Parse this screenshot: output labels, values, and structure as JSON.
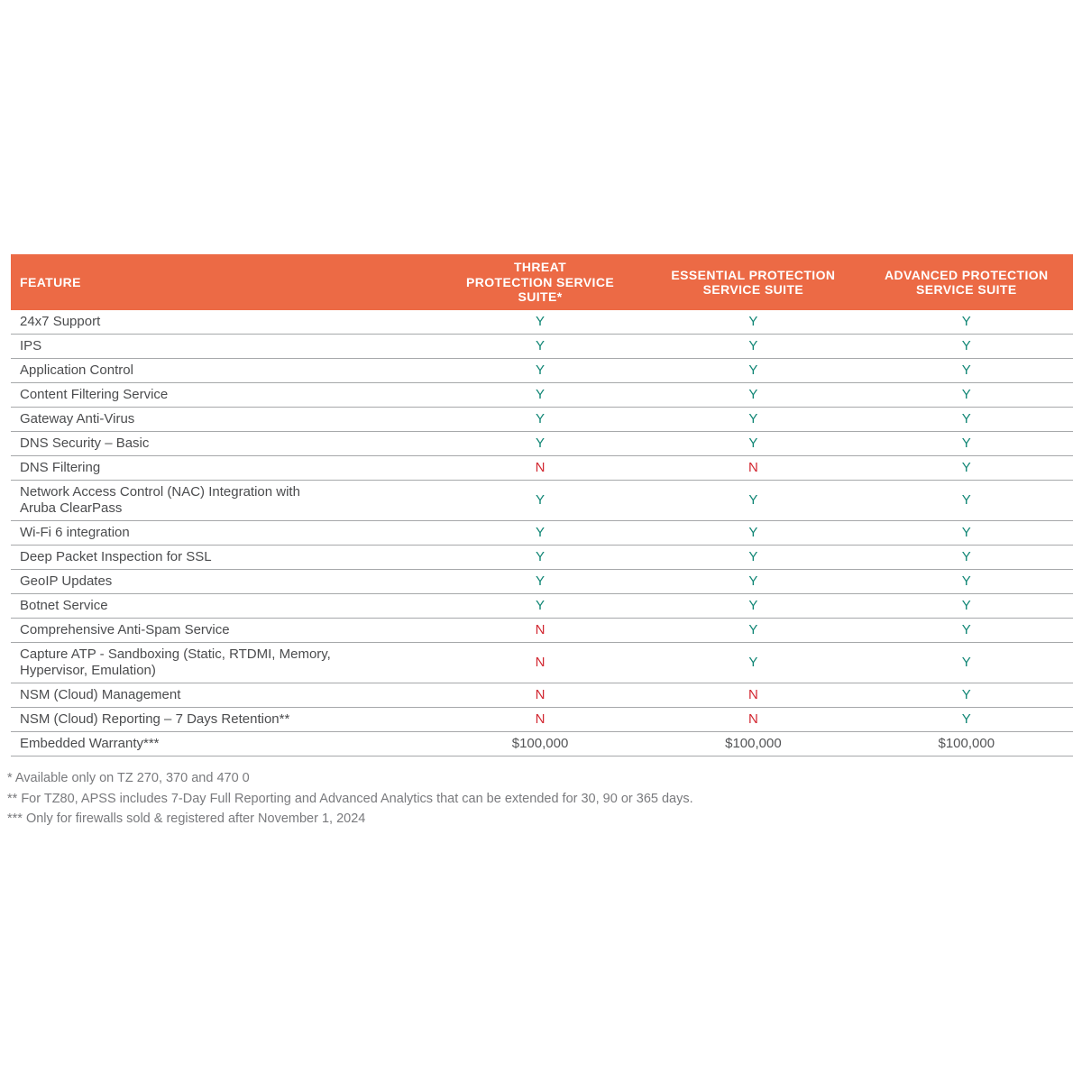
{
  "colors": {
    "header_bg": "#EC6A45",
    "header_text": "#FFFFFF",
    "yes": "#0F8574",
    "no": "#D22630",
    "feature_text": "#4B4C4E",
    "money_text": "#545557",
    "footnote_text": "#797A7D",
    "row_border": "#A6A8AA"
  },
  "table": {
    "columns": [
      {
        "key": "feature",
        "label": "FEATURE"
      },
      {
        "key": "threat",
        "label": "THREAT\nPROTECTION SERVICE\nSUITE*"
      },
      {
        "key": "essential",
        "label": "ESSENTIAL PROTECTION\nSERVICE SUITE"
      },
      {
        "key": "advanced",
        "label": "ADVANCED PROTECTION\nSERVICE SUITE"
      }
    ],
    "rows": [
      {
        "feature": "24x7 Support",
        "threat": "Y",
        "essential": "Y",
        "advanced": "Y"
      },
      {
        "feature": "IPS",
        "threat": "Y",
        "essential": "Y",
        "advanced": "Y"
      },
      {
        "feature": "Application Control",
        "threat": "Y",
        "essential": "Y",
        "advanced": "Y"
      },
      {
        "feature": "Content Filtering Service",
        "threat": "Y",
        "essential": "Y",
        "advanced": "Y"
      },
      {
        "feature": "Gateway Anti-Virus",
        "threat": "Y",
        "essential": "Y",
        "advanced": "Y"
      },
      {
        "feature": "DNS Security – Basic",
        "threat": "Y",
        "essential": "Y",
        "advanced": "Y"
      },
      {
        "feature": "DNS Filtering",
        "threat": "N",
        "essential": "N",
        "advanced": "Y"
      },
      {
        "feature": "Network Access Control (NAC) Integration with\nAruba ClearPass",
        "threat": "Y",
        "essential": "Y",
        "advanced": "Y"
      },
      {
        "feature": "Wi-Fi 6 integration",
        "threat": "Y",
        "essential": "Y",
        "advanced": "Y"
      },
      {
        "feature": "Deep Packet Inspection for SSL",
        "threat": "Y",
        "essential": "Y",
        "advanced": "Y"
      },
      {
        "feature": "GeoIP Updates",
        "threat": "Y",
        "essential": "Y",
        "advanced": "Y"
      },
      {
        "feature": "Botnet Service",
        "threat": "Y",
        "essential": "Y",
        "advanced": "Y"
      },
      {
        "feature": "Comprehensive Anti-Spam Service",
        "threat": "N",
        "essential": "Y",
        "advanced": "Y"
      },
      {
        "feature": "Capture ATP -  Sandboxing (Static, RTDMI, Memory,\nHypervisor, Emulation)",
        "threat": "N",
        "essential": "Y",
        "advanced": "Y"
      },
      {
        "feature": "NSM (Cloud) Management",
        "threat": "N",
        "essential": "N",
        "advanced": "Y"
      },
      {
        "feature": "NSM (Cloud) Reporting – 7 Days Retention**",
        "threat": "N",
        "essential": "N",
        "advanced": "Y"
      },
      {
        "feature": "Embedded Warranty***",
        "threat": "$100,000",
        "essential": "$100,000",
        "advanced": "$100,000"
      }
    ]
  },
  "footnotes": [
    "* Available only on TZ 270, 370 and 470 0",
    "** For TZ80, APSS includes 7-Day Full Reporting and Advanced Analytics that can be extended for 30, 90 or 365 days.",
    "*** Only for firewalls sold & registered after November 1, 2024"
  ]
}
